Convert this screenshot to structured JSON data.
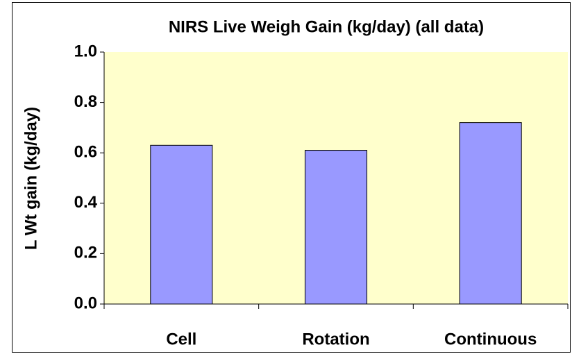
{
  "chart_data": {
    "type": "bar",
    "title": "NIRS Live Weigh Gain  (kg/day) (all data)",
    "y_label": "L Wt gain (kg/day)",
    "categories": [
      "Cell",
      "Rotation",
      "Continuous"
    ],
    "values": [
      0.63,
      0.61,
      0.72
    ],
    "color": "#9999ff",
    "ylim": [
      0,
      1
    ],
    "yticks": [
      {
        "value": 0,
        "label": "0.0"
      },
      0.2,
      0.4,
      0.6,
      0.8,
      {
        "value": 1,
        "label": "1.0"
      }
    ],
    "grid": false
  }
}
